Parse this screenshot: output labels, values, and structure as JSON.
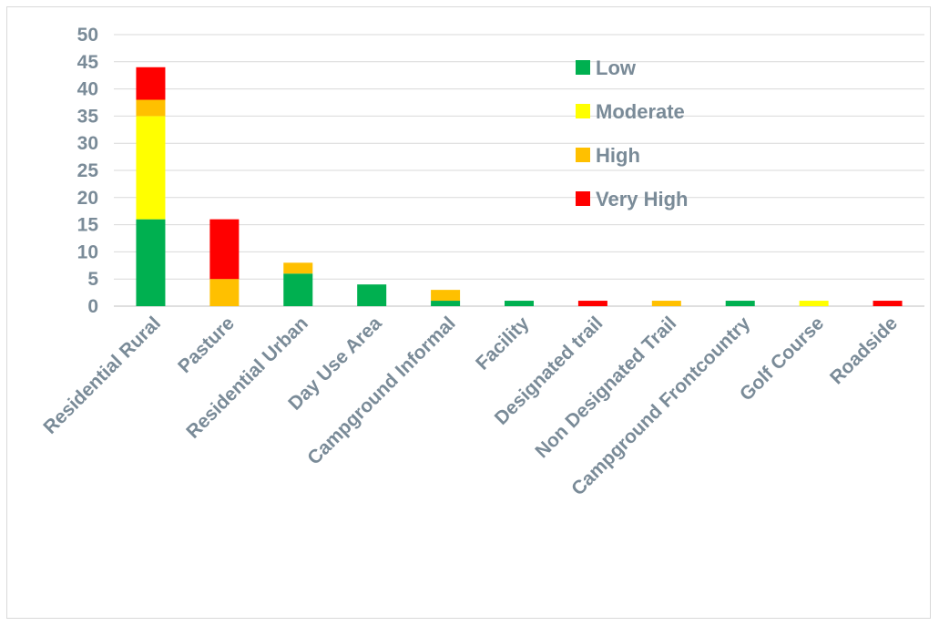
{
  "chart_data": {
    "type": "bar",
    "stacked": true,
    "categories": [
      "Residential Rural",
      "Pasture",
      "Residential Urban",
      "Day Use Area",
      "Campground Informal",
      "Facility",
      "Designated trail",
      "Non Designated Trail",
      "Campground Frontcountry",
      "Golf Course",
      "Roadside"
    ],
    "series": [
      {
        "name": "Low",
        "color": "#00b050",
        "values": [
          16,
          0,
          6,
          4,
          1,
          1,
          0,
          0,
          1,
          0,
          0
        ]
      },
      {
        "name": "Moderate",
        "color": "#ffff00",
        "values": [
          19,
          0,
          0,
          0,
          0,
          0,
          0,
          0,
          0,
          1,
          0
        ]
      },
      {
        "name": "High",
        "color": "#ffc000",
        "values": [
          3,
          5,
          2,
          0,
          2,
          0,
          0,
          1,
          0,
          0,
          0
        ]
      },
      {
        "name": "Very High",
        "color": "#ff0000",
        "values": [
          6,
          11,
          0,
          0,
          0,
          0,
          1,
          0,
          0,
          0,
          1
        ]
      }
    ],
    "ylim": [
      0,
      50
    ],
    "yticks": [
      0,
      5,
      10,
      15,
      20,
      25,
      30,
      35,
      40,
      45,
      50
    ],
    "grid": true,
    "legend_position": "top-right",
    "title": "",
    "xlabel": "",
    "ylabel": ""
  }
}
